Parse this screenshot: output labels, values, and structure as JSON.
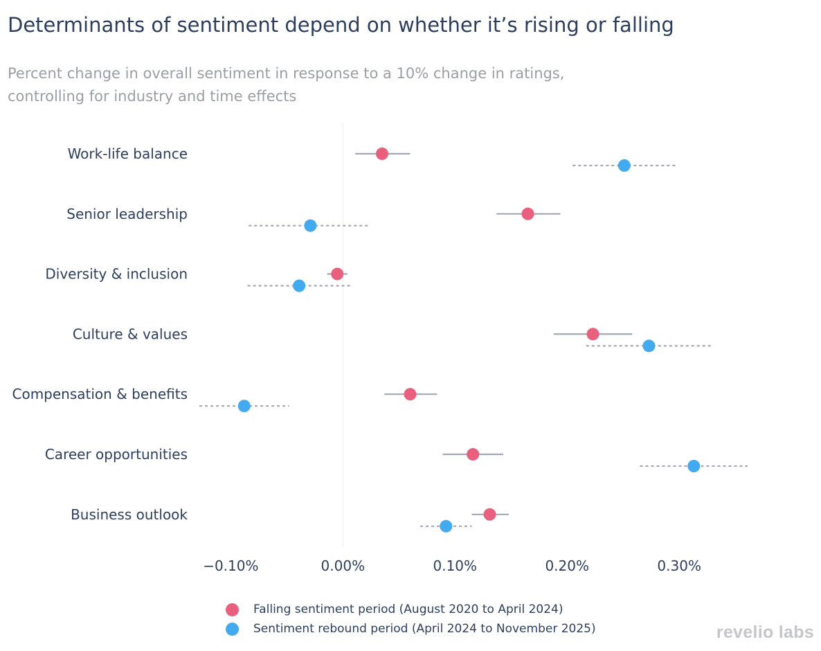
{
  "chart_data": {
    "type": "dot-errorbar",
    "title": "Determinants of sentiment depend on whether it’s rising or falling",
    "subtitle_lines": [
      "Percent change in overall sentiment in response to a 10% change in ratings,",
      "controlling for industry and time effects"
    ],
    "categories": [
      "Work-life balance",
      "Senior leadership",
      "Diversity & inclusion",
      "Culture & values",
      "Compensation & benefits",
      "Career opportunities",
      "Business outlook"
    ],
    "series": [
      {
        "name": "Falling sentiment period (August 2020 to April 2024)",
        "color": "#e8607d",
        "line_style": "solid",
        "values": [
          0.035,
          0.165,
          -0.005,
          0.223,
          0.06,
          0.116,
          0.131
        ],
        "ci_low": [
          0.011,
          0.137,
          -0.014,
          0.188,
          0.037,
          0.089,
          0.115
        ],
        "ci_high": [
          0.06,
          0.194,
          0.004,
          0.258,
          0.084,
          0.143,
          0.148
        ]
      },
      {
        "name": "Sentiment rebound period (April 2024 to November 2025)",
        "color": "#44aaf0",
        "line_style": "dotted",
        "values": [
          0.251,
          -0.029,
          -0.039,
          0.273,
          -0.088,
          0.313,
          0.092
        ],
        "ci_low": [
          0.205,
          -0.084,
          -0.085,
          0.217,
          -0.128,
          0.265,
          0.069
        ],
        "ci_high": [
          0.297,
          0.024,
          0.007,
          0.329,
          -0.048,
          0.361,
          0.115
        ]
      }
    ],
    "x_ticks": [
      -0.1,
      0.0,
      0.1,
      0.2,
      0.3
    ],
    "x_tick_labels": [
      "−0.10%",
      "0.00%",
      "0.10%",
      "0.20%",
      "0.30%"
    ],
    "xlim": [
      -0.128,
      0.361
    ],
    "zero_line": true,
    "errorbar_color": "#a3a7b5",
    "legend_position": "bottom-center"
  },
  "brand": "revelio labs"
}
